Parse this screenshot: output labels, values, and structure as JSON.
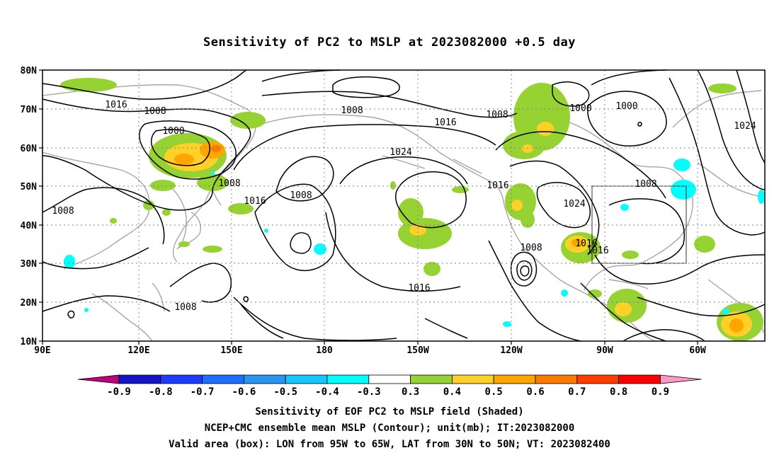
{
  "title": "Sensitivity of PC2 to MSLP at 2023082000 +0.5 day",
  "lat_labels": [
    "80N",
    "70N",
    "60N",
    "50N",
    "40N",
    "30N",
    "20N",
    "10N"
  ],
  "lon_labels": [
    "90E",
    "120E",
    "150E",
    "180",
    "150W",
    "120W",
    "90W",
    "60W"
  ],
  "contour_labels": {
    "c1": "1016",
    "c2": "1008",
    "c3": "1000",
    "c4": "1008",
    "c5": "1008",
    "c6": "1016",
    "c7": "1008",
    "c8": "1008",
    "c9": "1024",
    "c10": "1016",
    "c11": "1008",
    "c12": "1000",
    "c13": "1000",
    "c14": "1024",
    "c15": "1016",
    "c16": "1008",
    "c17": "1024",
    "c18": "1008",
    "c19": "1016",
    "c20": "1016",
    "c21": "1016",
    "c22": "1008"
  },
  "colorbar": {
    "labels": [
      "-0.9",
      "-0.8",
      "-0.7",
      "-0.6",
      "-0.5",
      "-0.4",
      "-0.3",
      "0.3",
      "0.4",
      "0.5",
      "0.6",
      "0.7",
      "0.8",
      "0.9"
    ],
    "colors": [
      "#c0007f",
      "#1414c8",
      "#1e3cff",
      "#1e6eff",
      "#2896f0",
      "#14c8ff",
      "#00ffff",
      "#ffffff",
      "#96d232",
      "#ffd028",
      "#ffa500",
      "#ff7800",
      "#ff3c00",
      "#fa0000",
      "#ff96c8"
    ]
  },
  "captions": {
    "line1": "Sensitivity of EOF PC2 to MSLP field (Shaded)",
    "line2": "NCEP+CMC ensemble mean MSLP (Contour); unit(mb); IT:2023082000",
    "line3": "Valid area (box): LON from 95W to 65W, LAT from 30N to 50N; VT: 2023082400"
  },
  "valid_box": {
    "lon_from": "95W",
    "lon_to": "65W",
    "lat_from": "30N",
    "lat_to": "50N"
  }
}
